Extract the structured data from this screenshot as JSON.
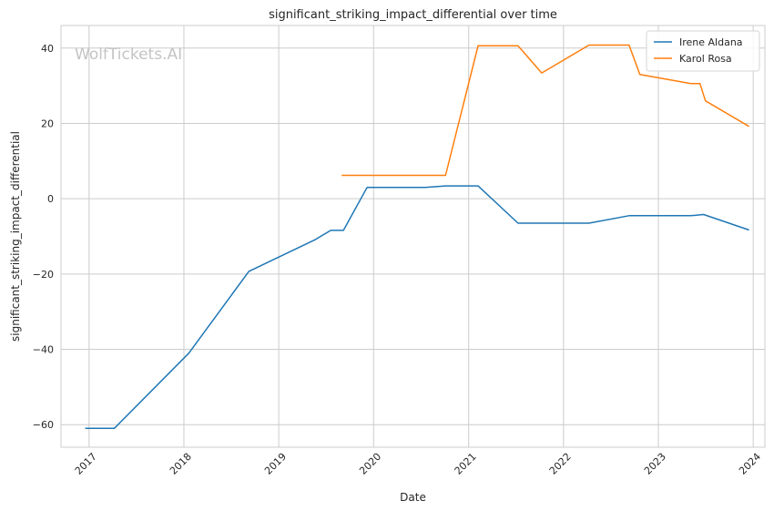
{
  "chart_data": {
    "type": "line",
    "title": "significant_striking_impact_differential over time",
    "xlabel": "Date",
    "ylabel": "significant_striking_impact_differential",
    "watermark": "WolfTickets.AI",
    "xlim": [
      "2016-09-15",
      "2024-02-15"
    ],
    "ylim": [
      -66,
      46
    ],
    "grid": true,
    "legend_position": "top-right",
    "x_ticks": [
      {
        "date": "2017-01-01",
        "label": "2017"
      },
      {
        "date": "2018-01-01",
        "label": "2018"
      },
      {
        "date": "2019-01-01",
        "label": "2019"
      },
      {
        "date": "2020-01-01",
        "label": "2020"
      },
      {
        "date": "2021-01-01",
        "label": "2021"
      },
      {
        "date": "2022-01-01",
        "label": "2022"
      },
      {
        "date": "2023-01-01",
        "label": "2023"
      },
      {
        "date": "2024-01-01",
        "label": "2024"
      }
    ],
    "y_ticks": [
      {
        "value": 40,
        "label": "40"
      },
      {
        "value": 20,
        "label": "20"
      },
      {
        "value": 0,
        "label": "0"
      },
      {
        "value": -20,
        "label": "−20"
      },
      {
        "value": -40,
        "label": "−40"
      },
      {
        "value": -60,
        "label": "−60"
      }
    ],
    "series": [
      {
        "name": "Irene Aldana",
        "color": "#1f77b4",
        "points": [
          [
            "2016-12-17",
            -61.0
          ],
          [
            "2017-04-08",
            -61.0
          ],
          [
            "2018-01-20",
            -41.0
          ],
          [
            "2018-09-08",
            -19.3
          ],
          [
            "2019-05-18",
            -11.0
          ],
          [
            "2019-07-20",
            -8.4
          ],
          [
            "2019-09-07",
            -8.4
          ],
          [
            "2019-12-07",
            3.0
          ],
          [
            "2020-07-18",
            3.0
          ],
          [
            "2020-10-04",
            3.4
          ],
          [
            "2021-02-06",
            3.4
          ],
          [
            "2021-07-10",
            -6.5
          ],
          [
            "2022-04-09",
            -6.5
          ],
          [
            "2022-09-10",
            -4.5
          ],
          [
            "2023-05-06",
            -4.5
          ],
          [
            "2023-06-24",
            -4.2
          ],
          [
            "2023-12-16",
            -8.3
          ]
        ]
      },
      {
        "name": "Karol Rosa",
        "color": "#ff7f0e",
        "points": [
          [
            "2019-08-31",
            6.2
          ],
          [
            "2020-10-04",
            6.2
          ],
          [
            "2021-02-06",
            40.6
          ],
          [
            "2021-07-10",
            40.6
          ],
          [
            "2021-10-09",
            33.4
          ],
          [
            "2022-04-09",
            40.8
          ],
          [
            "2022-09-10",
            40.8
          ],
          [
            "2022-10-22",
            33.0
          ],
          [
            "2023-05-06",
            30.6
          ],
          [
            "2023-06-10",
            30.6
          ],
          [
            "2023-07-01",
            26.0
          ],
          [
            "2023-12-16",
            19.2
          ]
        ]
      }
    ]
  }
}
